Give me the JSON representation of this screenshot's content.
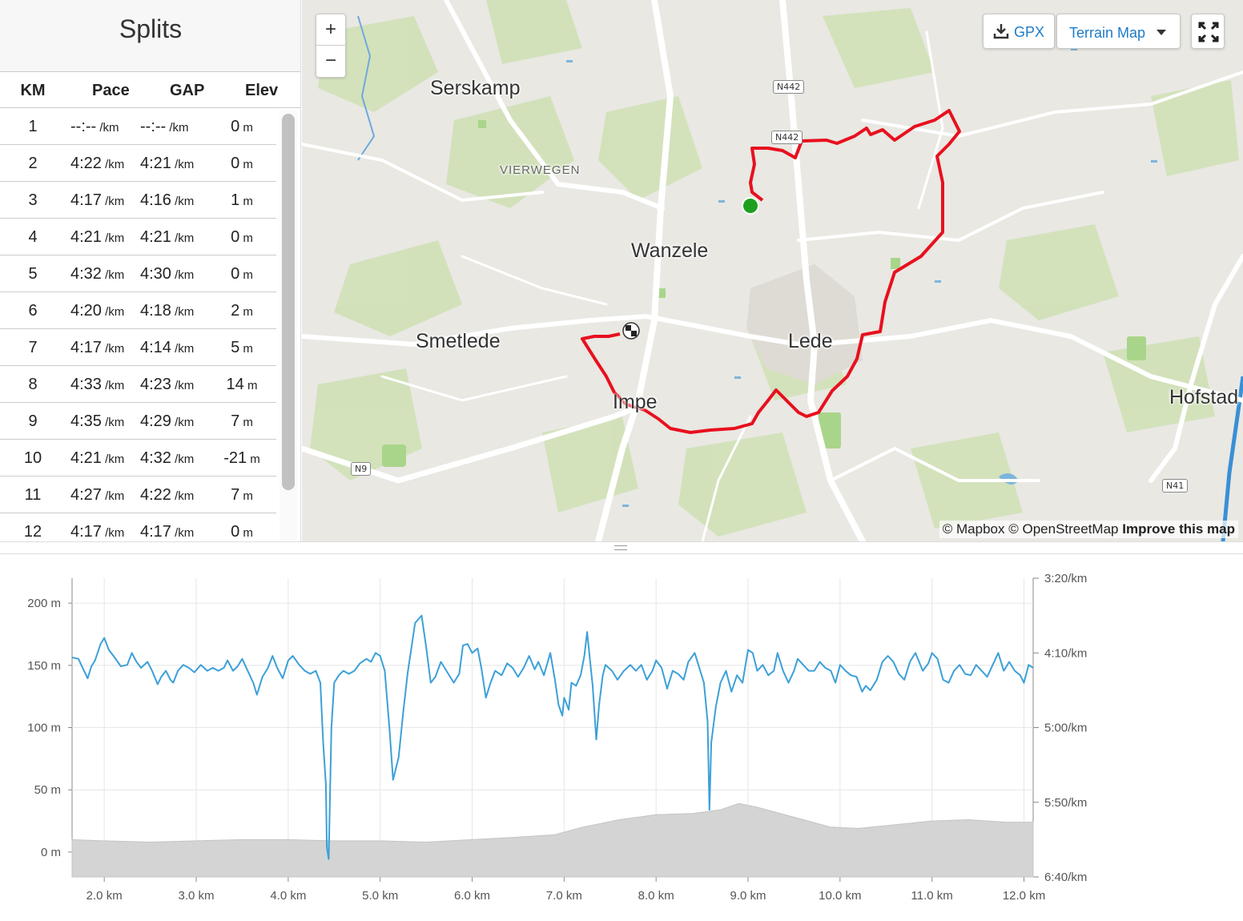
{
  "splits": {
    "title": "Splits",
    "headers": {
      "km": "KM",
      "pace": "Pace",
      "gap": "GAP",
      "elev": "Elev"
    },
    "unit_pace": "/km",
    "unit_elev": "m",
    "rows": [
      {
        "km": "1",
        "pace": "--:--",
        "gap": "--:--",
        "elev": "0"
      },
      {
        "km": "2",
        "pace": "4:22",
        "gap": "4:21",
        "elev": "0"
      },
      {
        "km": "3",
        "pace": "4:17",
        "gap": "4:16",
        "elev": "1"
      },
      {
        "km": "4",
        "pace": "4:21",
        "gap": "4:21",
        "elev": "0"
      },
      {
        "km": "5",
        "pace": "4:32",
        "gap": "4:30",
        "elev": "0"
      },
      {
        "km": "6",
        "pace": "4:20",
        "gap": "4:18",
        "elev": "2"
      },
      {
        "km": "7",
        "pace": "4:17",
        "gap": "4:14",
        "elev": "5"
      },
      {
        "km": "8",
        "pace": "4:33",
        "gap": "4:23",
        "elev": "14"
      },
      {
        "km": "9",
        "pace": "4:35",
        "gap": "4:29",
        "elev": "7"
      },
      {
        "km": "10",
        "pace": "4:21",
        "gap": "4:32",
        "elev": "-21"
      },
      {
        "km": "11",
        "pace": "4:27",
        "gap": "4:22",
        "elev": "7"
      },
      {
        "km": "12",
        "pace": "4:17",
        "gap": "4:17",
        "elev": "0"
      }
    ]
  },
  "map": {
    "controls": {
      "zoom_in": "+",
      "zoom_out": "−",
      "gpx_label": "GPX",
      "map_style": "Terrain Map"
    },
    "attribution": {
      "mapbox": "© Mapbox",
      "osm": "© OpenStreetMap",
      "improve": "Improve this map"
    },
    "places": [
      "Serskamp",
      "VIERWEGEN",
      "Wanzele",
      "Smetlede",
      "Lede",
      "Impe",
      "Hofstad"
    ],
    "road_shields": [
      "N442",
      "N442",
      "N9",
      "N41"
    ],
    "route_color": "#e8101e",
    "start_marker_color": "#1ea01e"
  },
  "chart_data": {
    "type": "area",
    "x_unit": "km",
    "xlim": [
      1.65,
      12.1
    ],
    "x_ticks": [
      "2.0 km",
      "3.0 km",
      "4.0 km",
      "5.0 km",
      "6.0 km",
      "7.0 km",
      "8.0 km",
      "9.0 km",
      "10.0 km",
      "11.0 km",
      "12.0 km"
    ],
    "y_left_ticks": [
      "200 m",
      "150 m",
      "100 m",
      "50 m",
      "0 m"
    ],
    "y_left_lim": [
      -20,
      220
    ],
    "y_right_ticks": [
      "3:20/km",
      "4:10/km",
      "5:00/km",
      "5:50/km",
      "6:40/km"
    ],
    "y_right_lim_sec_per_km": [
      200,
      400
    ],
    "series": [
      {
        "kind": "elevation_area",
        "color": "#d4d4d4",
        "points": [
          [
            1.65,
            10
          ],
          [
            2.0,
            9
          ],
          [
            2.5,
            8
          ],
          [
            3.0,
            9
          ],
          [
            3.5,
            10
          ],
          [
            4.0,
            10
          ],
          [
            4.5,
            9
          ],
          [
            5.0,
            9
          ],
          [
            5.5,
            8
          ],
          [
            6.0,
            10
          ],
          [
            6.5,
            12
          ],
          [
            6.9,
            14
          ],
          [
            7.2,
            20
          ],
          [
            7.6,
            26
          ],
          [
            8.0,
            30
          ],
          [
            8.4,
            31
          ],
          [
            8.7,
            34
          ],
          [
            8.9,
            39
          ],
          [
            9.1,
            36
          ],
          [
            9.5,
            28
          ],
          [
            9.9,
            20
          ],
          [
            10.2,
            19
          ],
          [
            10.6,
            22
          ],
          [
            11.0,
            25
          ],
          [
            11.4,
            26
          ],
          [
            11.8,
            24
          ],
          [
            12.1,
            24
          ]
        ]
      },
      {
        "kind": "pace_line",
        "color": "#3ca0d8",
        "unit": "sec_per_km",
        "points": [
          [
            1.65,
            253
          ],
          [
            1.72,
            254
          ],
          [
            1.78,
            262
          ],
          [
            1.82,
            267
          ],
          [
            1.86,
            259
          ],
          [
            1.9,
            255
          ],
          [
            1.96,
            244
          ],
          [
            2.0,
            240
          ],
          [
            2.05,
            248
          ],
          [
            2.1,
            252
          ],
          [
            2.18,
            259
          ],
          [
            2.25,
            258
          ],
          [
            2.3,
            250
          ],
          [
            2.35,
            256
          ],
          [
            2.4,
            260
          ],
          [
            2.47,
            256
          ],
          [
            2.52,
            262
          ],
          [
            2.58,
            271
          ],
          [
            2.62,
            266
          ],
          [
            2.67,
            262
          ],
          [
            2.72,
            268
          ],
          [
            2.75,
            270
          ],
          [
            2.8,
            262
          ],
          [
            2.86,
            258
          ],
          [
            2.92,
            260
          ],
          [
            2.98,
            263
          ],
          [
            3.05,
            258
          ],
          [
            3.12,
            262
          ],
          [
            3.18,
            260
          ],
          [
            3.24,
            262
          ],
          [
            3.3,
            260
          ],
          [
            3.34,
            255
          ],
          [
            3.4,
            262
          ],
          [
            3.45,
            259
          ],
          [
            3.5,
            254
          ],
          [
            3.56,
            262
          ],
          [
            3.62,
            270
          ],
          [
            3.66,
            278
          ],
          [
            3.72,
            266
          ],
          [
            3.78,
            260
          ],
          [
            3.83,
            252
          ],
          [
            3.88,
            260
          ],
          [
            3.94,
            267
          ],
          [
            4.0,
            255
          ],
          [
            4.05,
            252
          ],
          [
            4.12,
            258
          ],
          [
            4.18,
            262
          ],
          [
            4.24,
            264
          ],
          [
            4.3,
            262
          ],
          [
            4.35,
            270
          ],
          [
            4.38,
            310
          ],
          [
            4.41,
            338
          ],
          [
            4.42,
            380
          ],
          [
            4.44,
            388
          ],
          [
            4.47,
            300
          ],
          [
            4.5,
            270
          ],
          [
            4.55,
            265
          ],
          [
            4.6,
            262
          ],
          [
            4.66,
            264
          ],
          [
            4.72,
            262
          ],
          [
            4.78,
            257
          ],
          [
            4.85,
            254
          ],
          [
            4.9,
            256
          ],
          [
            4.95,
            250
          ],
          [
            5.0,
            252
          ],
          [
            5.05,
            262
          ],
          [
            5.1,
            300
          ],
          [
            5.14,
            335
          ],
          [
            5.2,
            320
          ],
          [
            5.25,
            290
          ],
          [
            5.3,
            263
          ],
          [
            5.38,
            230
          ],
          [
            5.45,
            225
          ],
          [
            5.5,
            246
          ],
          [
            5.55,
            270
          ],
          [
            5.6,
            266
          ],
          [
            5.66,
            256
          ],
          [
            5.72,
            262
          ],
          [
            5.8,
            270
          ],
          [
            5.86,
            264
          ],
          [
            5.9,
            245
          ],
          [
            5.95,
            244
          ],
          [
            6.0,
            250
          ],
          [
            6.06,
            247
          ],
          [
            6.1,
            260
          ],
          [
            6.15,
            280
          ],
          [
            6.2,
            270
          ],
          [
            6.25,
            262
          ],
          [
            6.32,
            265
          ],
          [
            6.38,
            257
          ],
          [
            6.44,
            260
          ],
          [
            6.5,
            266
          ],
          [
            6.56,
            260
          ],
          [
            6.62,
            252
          ],
          [
            6.68,
            261
          ],
          [
            6.72,
            256
          ],
          [
            6.78,
            265
          ],
          [
            6.85,
            250
          ],
          [
            6.9,
            268
          ],
          [
            6.94,
            285
          ],
          [
            6.98,
            292
          ],
          [
            7.0,
            280
          ],
          [
            7.05,
            288
          ],
          [
            7.08,
            270
          ],
          [
            7.13,
            272
          ],
          [
            7.18,
            265
          ],
          [
            7.22,
            252
          ],
          [
            7.25,
            236
          ],
          [
            7.28,
            254
          ],
          [
            7.31,
            272
          ],
          [
            7.35,
            308
          ],
          [
            7.38,
            285
          ],
          [
            7.42,
            265
          ],
          [
            7.45,
            258
          ],
          [
            7.52,
            262
          ],
          [
            7.58,
            268
          ],
          [
            7.65,
            262
          ],
          [
            7.72,
            258
          ],
          [
            7.78,
            262
          ],
          [
            7.84,
            258
          ],
          [
            7.9,
            268
          ],
          [
            7.96,
            262
          ],
          [
            8.0,
            255
          ],
          [
            8.06,
            260
          ],
          [
            8.12,
            274
          ],
          [
            8.18,
            262
          ],
          [
            8.24,
            264
          ],
          [
            8.3,
            268
          ],
          [
            8.35,
            256
          ],
          [
            8.42,
            250
          ],
          [
            8.48,
            262
          ],
          [
            8.52,
            270
          ],
          [
            8.56,
            296
          ],
          [
            8.58,
            355
          ],
          [
            8.6,
            310
          ],
          [
            8.65,
            286
          ],
          [
            8.7,
            270
          ],
          [
            8.76,
            262
          ],
          [
            8.82,
            276
          ],
          [
            8.88,
            265
          ],
          [
            8.94,
            270
          ],
          [
            9.0,
            248
          ],
          [
            9.05,
            250
          ],
          [
            9.1,
            262
          ],
          [
            9.16,
            258
          ],
          [
            9.22,
            265
          ],
          [
            9.28,
            262
          ],
          [
            9.32,
            250
          ],
          [
            9.38,
            262
          ],
          [
            9.44,
            270
          ],
          [
            9.5,
            262
          ],
          [
            9.54,
            254
          ],
          [
            9.6,
            258
          ],
          [
            9.66,
            262
          ],
          [
            9.72,
            262
          ],
          [
            9.78,
            256
          ],
          [
            9.84,
            260
          ],
          [
            9.9,
            262
          ],
          [
            9.95,
            270
          ],
          [
            10.0,
            258
          ],
          [
            10.06,
            262
          ],
          [
            10.12,
            265
          ],
          [
            10.18,
            266
          ],
          [
            10.24,
            276
          ],
          [
            10.28,
            272
          ],
          [
            10.33,
            275
          ],
          [
            10.4,
            268
          ],
          [
            10.46,
            256
          ],
          [
            10.52,
            252
          ],
          [
            10.58,
            256
          ],
          [
            10.64,
            264
          ],
          [
            10.7,
            268
          ],
          [
            10.76,
            256
          ],
          [
            10.82,
            250
          ],
          [
            10.9,
            262
          ],
          [
            10.96,
            257
          ],
          [
            11.0,
            250
          ],
          [
            11.06,
            254
          ],
          [
            11.12,
            268
          ],
          [
            11.18,
            270
          ],
          [
            11.24,
            262
          ],
          [
            11.3,
            258
          ],
          [
            11.36,
            264
          ],
          [
            11.42,
            265
          ],
          [
            11.48,
            258
          ],
          [
            11.54,
            262
          ],
          [
            11.6,
            266
          ],
          [
            11.66,
            258
          ],
          [
            11.72,
            250
          ],
          [
            11.78,
            262
          ],
          [
            11.84,
            256
          ],
          [
            11.9,
            262
          ],
          [
            11.96,
            265
          ],
          [
            12.0,
            270
          ],
          [
            12.05,
            258
          ],
          [
            12.1,
            260
          ]
        ]
      }
    ]
  }
}
